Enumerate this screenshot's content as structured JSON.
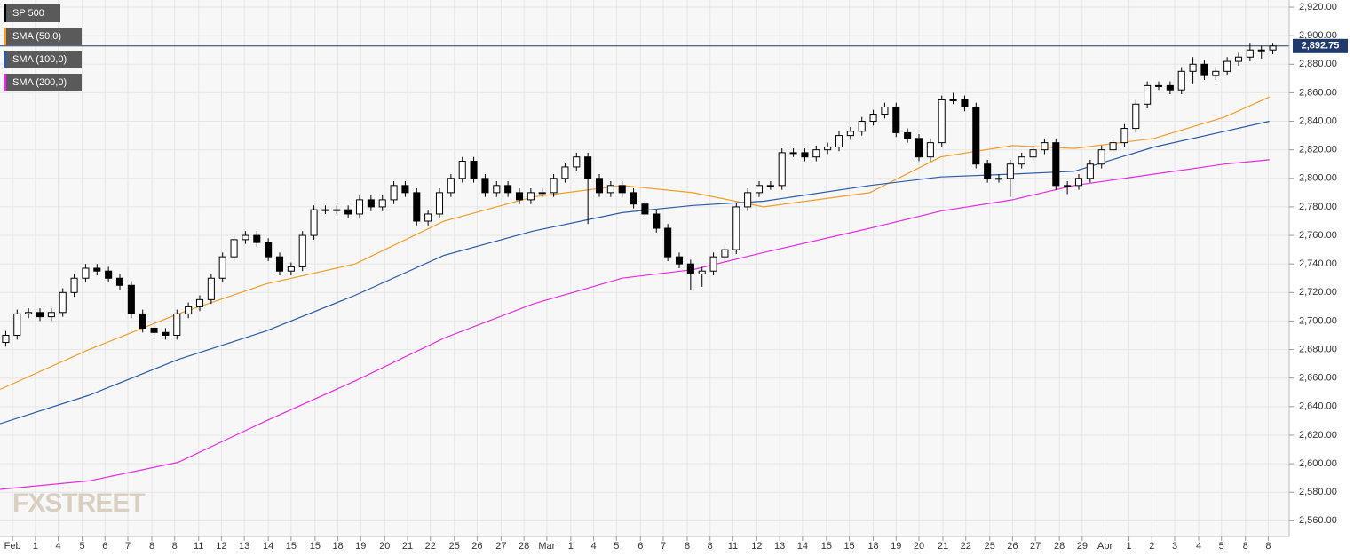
{
  "chart_data": {
    "type": "candlestick",
    "watermark": "FXSTREET",
    "grid": true,
    "candles": {
      "name": "SP 500",
      "color": "#000000",
      "open": [
        2685,
        2690,
        2705,
        2706,
        2703,
        2706,
        2720,
        2730,
        2737,
        2735,
        2730,
        2725,
        2705,
        2695,
        2692,
        2690,
        2705,
        2710,
        2715,
        2730,
        2745,
        2757,
        2760,
        2755,
        2745,
        2735,
        2738,
        2760,
        2778,
        2778,
        2778,
        2775,
        2785,
        2780,
        2785,
        2795,
        2790,
        2770,
        2775,
        2790,
        2800,
        2812,
        2800,
        2790,
        2795,
        2790,
        2785,
        2790,
        2790,
        2800,
        2808,
        2815,
        2800,
        2790,
        2795,
        2790,
        2782,
        2775,
        2765,
        2745,
        2740,
        2733,
        2735,
        2745,
        2750,
        2780,
        2790,
        2795,
        2795,
        2818,
        2818,
        2815,
        2820,
        2822,
        2830,
        2833,
        2840,
        2845,
        2850,
        2832,
        2828,
        2815,
        2825,
        2855,
        2855,
        2850,
        2810,
        2800,
        2800,
        2810,
        2815,
        2820,
        2825,
        2795,
        2795,
        2800,
        2810,
        2820,
        2825,
        2835,
        2852,
        2865,
        2865,
        2862,
        2875,
        2880,
        2872,
        2875,
        2882,
        2885,
        2890,
        2890
      ],
      "high": [
        2693,
        2708,
        2709,
        2709,
        2709,
        2723,
        2733,
        2740,
        2740,
        2738,
        2733,
        2728,
        2708,
        2698,
        2695,
        2708,
        2713,
        2718,
        2733,
        2748,
        2760,
        2763,
        2763,
        2758,
        2748,
        2741,
        2763,
        2781,
        2781,
        2781,
        2781,
        2788,
        2788,
        2788,
        2798,
        2798,
        2793,
        2778,
        2793,
        2803,
        2815,
        2815,
        2803,
        2798,
        2798,
        2793,
        2793,
        2793,
        2803,
        2811,
        2818,
        2818,
        2803,
        2798,
        2798,
        2793,
        2785,
        2778,
        2768,
        2748,
        2743,
        2738,
        2748,
        2753,
        2783,
        2793,
        2798,
        2798,
        2821,
        2821,
        2821,
        2823,
        2825,
        2833,
        2836,
        2843,
        2848,
        2853,
        2853,
        2835,
        2831,
        2828,
        2858,
        2860,
        2858,
        2853,
        2813,
        2803,
        2813,
        2818,
        2823,
        2828,
        2828,
        2798,
        2803,
        2813,
        2823,
        2828,
        2838,
        2855,
        2868,
        2868,
        2868,
        2878,
        2885,
        2883,
        2878,
        2885,
        2888,
        2895,
        2893,
        2895
      ],
      "low": [
        2682,
        2687,
        2702,
        2700,
        2700,
        2703,
        2717,
        2727,
        2732,
        2727,
        2722,
        2702,
        2692,
        2689,
        2687,
        2687,
        2702,
        2707,
        2712,
        2727,
        2742,
        2754,
        2752,
        2742,
        2732,
        2732,
        2735,
        2757,
        2775,
        2775,
        2772,
        2772,
        2777,
        2777,
        2782,
        2787,
        2767,
        2767,
        2772,
        2787,
        2797,
        2797,
        2787,
        2787,
        2787,
        2782,
        2782,
        2787,
        2787,
        2797,
        2805,
        2768,
        2787,
        2787,
        2787,
        2779,
        2772,
        2762,
        2742,
        2737,
        2722,
        2724,
        2732,
        2742,
        2747,
        2777,
        2787,
        2792,
        2792,
        2815,
        2812,
        2812,
        2817,
        2819,
        2827,
        2830,
        2837,
        2842,
        2829,
        2825,
        2812,
        2812,
        2822,
        2852,
        2847,
        2807,
        2797,
        2797,
        2787,
        2807,
        2812,
        2817,
        2792,
        2789,
        2792,
        2797,
        2807,
        2817,
        2822,
        2832,
        2849,
        2862,
        2859,
        2859,
        2866,
        2869,
        2869,
        2872,
        2879,
        2882,
        2884,
        2887
      ],
      "close": [
        2690,
        2705,
        2706,
        2703,
        2706,
        2720,
        2730,
        2737,
        2735,
        2730,
        2725,
        2705,
        2695,
        2692,
        2690,
        2705,
        2710,
        2715,
        2730,
        2745,
        2757,
        2760,
        2755,
        2745,
        2735,
        2738,
        2760,
        2778,
        2778,
        2778,
        2775,
        2785,
        2780,
        2785,
        2795,
        2790,
        2770,
        2775,
        2790,
        2800,
        2812,
        2800,
        2790,
        2795,
        2790,
        2785,
        2790,
        2790,
        2800,
        2808,
        2815,
        2800,
        2790,
        2795,
        2790,
        2782,
        2775,
        2765,
        2745,
        2740,
        2733,
        2735,
        2745,
        2750,
        2780,
        2790,
        2795,
        2795,
        2818,
        2818,
        2815,
        2820,
        2822,
        2830,
        2833,
        2840,
        2845,
        2850,
        2832,
        2828,
        2815,
        2825,
        2855,
        2855,
        2850,
        2810,
        2800,
        2800,
        2810,
        2815,
        2820,
        2825,
        2795,
        2795,
        2800,
        2810,
        2820,
        2825,
        2835,
        2852,
        2865,
        2865,
        2862,
        2875,
        2880,
        2872,
        2875,
        2882,
        2885,
        2890,
        2890,
        2892.75
      ]
    },
    "lines": [
      {
        "name": "SMA (50,0)",
        "color": "#f39c2a",
        "x": [
          -0.5,
          7.3,
          15.1,
          22.8,
          30.6,
          38.4,
          46.2,
          54,
          60.2,
          66.4,
          75.7,
          81.9,
          88.2,
          93.6,
          100.6,
          106.8,
          110.7
        ],
        "values": [
          2652,
          2680,
          2705,
          2726,
          2740,
          2770,
          2787,
          2795,
          2790,
          2780,
          2790,
          2815,
          2823,
          2821,
          2828,
          2843,
          2857
        ]
      },
      {
        "name": "SMA (100,0)",
        "color": "#2a5ca8",
        "x": [
          -0.5,
          7.3,
          15.1,
          22.8,
          30.6,
          38.4,
          46.2,
          54,
          60.2,
          66.4,
          75.7,
          81.9,
          88.2,
          93.6,
          100.6,
          106.8,
          110.7
        ],
        "values": [
          2628,
          2648,
          2673,
          2693,
          2718,
          2746,
          2763,
          2776,
          2781,
          2784,
          2795,
          2801,
          2803,
          2805,
          2822,
          2833,
          2840
        ]
      },
      {
        "name": "SMA (200,0)",
        "color": "#e52ee0",
        "x": [
          -0.5,
          7.3,
          15.1,
          22.8,
          30.6,
          38.4,
          46.2,
          54,
          60.2,
          66.4,
          75.7,
          81.9,
          88.2,
          93.6,
          100.6,
          106.8,
          110.7
        ],
        "values": [
          2582,
          2588,
          2601,
          2630,
          2658,
          2688,
          2712,
          2730,
          2736,
          2748,
          2765,
          2777,
          2785,
          2795,
          2803,
          2810,
          2813
        ]
      }
    ],
    "last_price": {
      "value": 2892.75,
      "label": "2,892.75"
    },
    "xlim": [
      -0.5,
      111.5
    ],
    "ylim": [
      2549,
      2925
    ],
    "yticks": [
      {
        "value": 2560,
        "label": "2,560.00"
      },
      {
        "value": 2580,
        "label": "2,580.00"
      },
      {
        "value": 2600,
        "label": "2,600.00"
      },
      {
        "value": 2620,
        "label": "2,620.00"
      },
      {
        "value": 2640,
        "label": "2,640.00"
      },
      {
        "value": 2660,
        "label": "2,660.00"
      },
      {
        "value": 2680,
        "label": "2,680.00"
      },
      {
        "value": 2700,
        "label": "2,700.00"
      },
      {
        "value": 2720,
        "label": "2,720.00"
      },
      {
        "value": 2740,
        "label": "2,740.00"
      },
      {
        "value": 2760,
        "label": "2,760.00"
      },
      {
        "value": 2780,
        "label": "2,780.00"
      },
      {
        "value": 2800,
        "label": "2,800.00"
      },
      {
        "value": 2820,
        "label": "2,820.00"
      },
      {
        "value": 2840,
        "label": "2,840.00"
      },
      {
        "value": 2860,
        "label": "2,860.00"
      },
      {
        "value": 2880,
        "label": "2,880.00"
      },
      {
        "value": 2900,
        "label": "2,900.00"
      },
      {
        "value": 2920,
        "label": "2,920.00"
      }
    ],
    "xticks": [
      {
        "value": 0.6,
        "label": "Feb"
      },
      {
        "value": 2.6,
        "label": "1"
      },
      {
        "value": 4.6,
        "label": "4"
      },
      {
        "value": 6.7,
        "label": "5"
      },
      {
        "value": 8.7,
        "label": "6"
      },
      {
        "value": 10.7,
        "label": "7"
      },
      {
        "value": 12.8,
        "label": "8"
      },
      {
        "value": 14.8,
        "label": "8"
      },
      {
        "value": 16.9,
        "label": "11"
      },
      {
        "value": 18.9,
        "label": "12"
      },
      {
        "value": 20.9,
        "label": "13"
      },
      {
        "value": 23.0,
        "label": "14"
      },
      {
        "value": 25.0,
        "label": "15"
      },
      {
        "value": 27.1,
        "label": "15"
      },
      {
        "value": 29.1,
        "label": "18"
      },
      {
        "value": 31.1,
        "label": "19"
      },
      {
        "value": 33.2,
        "label": "20"
      },
      {
        "value": 35.2,
        "label": "21"
      },
      {
        "value": 37.2,
        "label": "22"
      },
      {
        "value": 39.3,
        "label": "25"
      },
      {
        "value": 41.3,
        "label": "26"
      },
      {
        "value": 43.4,
        "label": "27"
      },
      {
        "value": 45.4,
        "label": "28"
      },
      {
        "value": 47.4,
        "label": "Mar"
      },
      {
        "value": 49.5,
        "label": "1"
      },
      {
        "value": 51.5,
        "label": "4"
      },
      {
        "value": 53.5,
        "label": "5"
      },
      {
        "value": 55.6,
        "label": "6"
      },
      {
        "value": 57.6,
        "label": "7"
      },
      {
        "value": 59.7,
        "label": "8"
      },
      {
        "value": 61.7,
        "label": "8"
      },
      {
        "value": 63.7,
        "label": "11"
      },
      {
        "value": 65.8,
        "label": "12"
      },
      {
        "value": 67.8,
        "label": "13"
      },
      {
        "value": 69.8,
        "label": "14"
      },
      {
        "value": 71.9,
        "label": "15"
      },
      {
        "value": 73.9,
        "label": "15"
      },
      {
        "value": 76.0,
        "label": "18"
      },
      {
        "value": 78.0,
        "label": "19"
      },
      {
        "value": 80.0,
        "label": "20"
      },
      {
        "value": 82.1,
        "label": "21"
      },
      {
        "value": 84.1,
        "label": "22"
      },
      {
        "value": 86.2,
        "label": "25"
      },
      {
        "value": 88.2,
        "label": "26"
      },
      {
        "value": 90.2,
        "label": "27"
      },
      {
        "value": 92.3,
        "label": "28"
      },
      {
        "value": 94.3,
        "label": "29"
      },
      {
        "value": 96.3,
        "label": "Apr"
      },
      {
        "value": 98.4,
        "label": "1"
      },
      {
        "value": 100.4,
        "label": "2"
      },
      {
        "value": 102.4,
        "label": "3"
      },
      {
        "value": 104.5,
        "label": "4"
      },
      {
        "value": 106.5,
        "label": "5"
      },
      {
        "value": 108.6,
        "label": "8"
      },
      {
        "value": 110.6,
        "label": "8"
      }
    ]
  }
}
